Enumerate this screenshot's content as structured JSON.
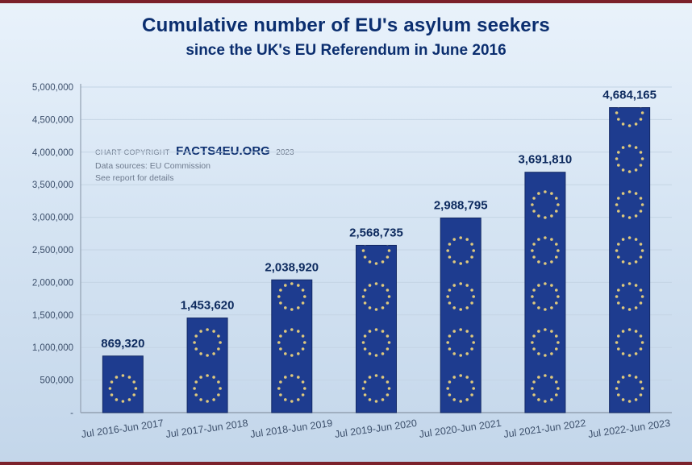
{
  "header": {
    "title_line1": "Cumulative number of EU's asylum seekers",
    "title_line2": "since the UK's EU Referendum in June 2016"
  },
  "copyright": {
    "prefix": "CHART COPYRIGHT",
    "brand": "FACTS4EU.ORG",
    "year": "2023",
    "source_line": "Data sources: EU Commission",
    "note_line": "See report for details"
  },
  "chart_data": {
    "type": "bar",
    "title": "Cumulative number of EU's asylum seekers since the UK's EU Referendum in June 2016",
    "categories": [
      "Jul 2016-Jun 2017",
      "Jul 2017-Jun 2018",
      "Jul 2018-Jun 2019",
      "Jul 2019-Jun 2020",
      "Jul 2020-Jun 2021",
      "Jul 2021-Jun 2022",
      "Jul 2022-Jun 2023"
    ],
    "values": [
      869320,
      1453620,
      2038920,
      2568735,
      2988795,
      3691810,
      4684165
    ],
    "value_labels": [
      "869,320",
      "1,453,620",
      "2,038,920",
      "2,568,735",
      "2,988,795",
      "3,691,810",
      "4,684,165"
    ],
    "xlabel": "",
    "ylabel": "",
    "ylim": [
      0,
      5000000
    ],
    "ytick_step": 500000,
    "ytick_labels": [
      "-",
      "500,000",
      "1,000,000",
      "1,500,000",
      "2,000,000",
      "2,500,000",
      "3,000,000",
      "3,500,000",
      "4,000,000",
      "4,500,000",
      "5,000,000"
    ],
    "grid": "horizontal",
    "legend": "none",
    "colors": {
      "bar_fill": "#1e3c8f",
      "bar_border": "#142a66",
      "star_dot": "#f3d77b",
      "value_label": "#0d2a5e",
      "tick_text": "#3c4f6b",
      "grid_line": "#c4d4e4",
      "axis_line": "#93a1b2"
    }
  }
}
